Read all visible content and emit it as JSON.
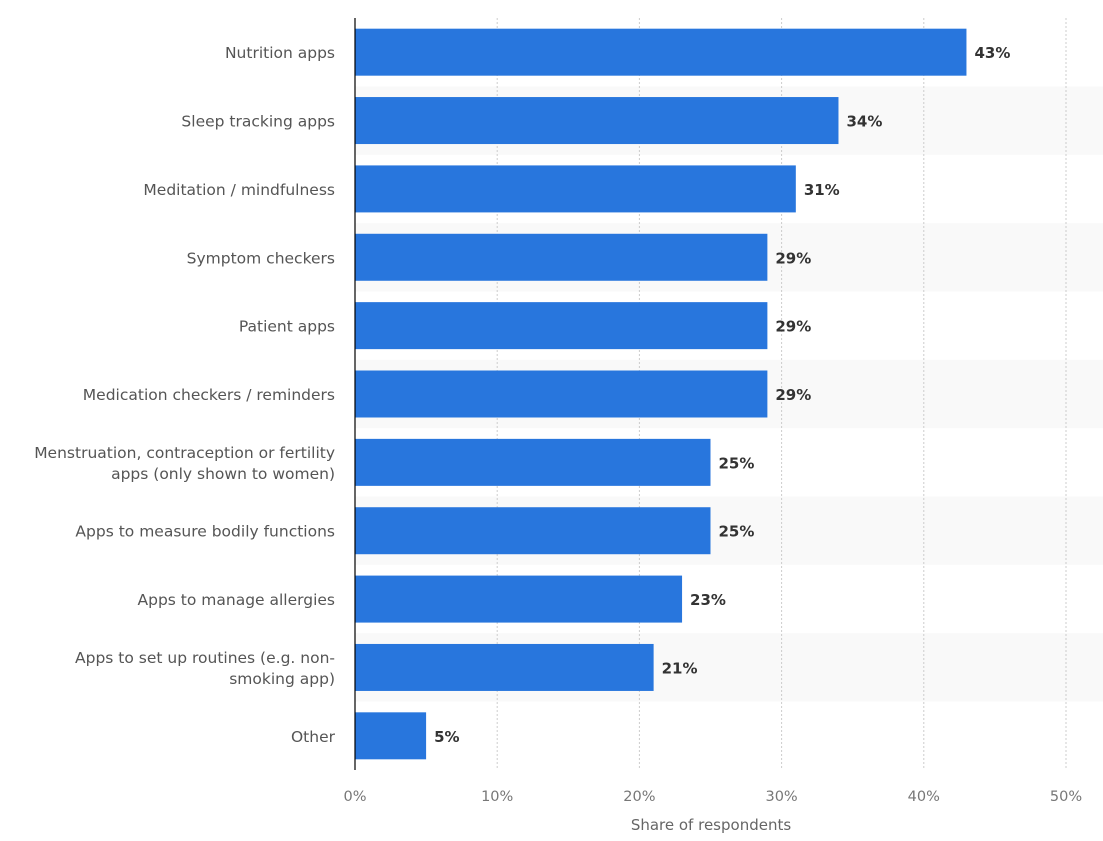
{
  "chart_data": {
    "type": "bar",
    "orientation": "horizontal",
    "title": "",
    "xlabel": "Share of respondents",
    "ylabel": "",
    "xlim": [
      0,
      50
    ],
    "ticks": [
      "0%",
      "10%",
      "20%",
      "30%",
      "40%",
      "50%"
    ],
    "tick_values": [
      0,
      10,
      20,
      30,
      40,
      50
    ],
    "grid": true,
    "bar_color": "#2876dd",
    "categories": [
      [
        "Nutrition apps"
      ],
      [
        "Sleep tracking apps"
      ],
      [
        "Meditation / mindfulness"
      ],
      [
        "Symptom checkers"
      ],
      [
        "Patient apps"
      ],
      [
        "Medication checkers / reminders"
      ],
      [
        "Menstruation, contraception or fertility",
        "apps (only shown to women)"
      ],
      [
        "Apps to measure bodily functions"
      ],
      [
        "Apps to manage allergies"
      ],
      [
        "Apps to set up routines (e.g. non-",
        "smoking app)"
      ],
      [
        "Other"
      ]
    ],
    "values": [
      43,
      34,
      31,
      29,
      29,
      29,
      25,
      25,
      23,
      21,
      5
    ],
    "value_labels": [
      "43%",
      "34%",
      "31%",
      "29%",
      "29%",
      "29%",
      "25%",
      "25%",
      "23%",
      "21%",
      "5%"
    ]
  }
}
